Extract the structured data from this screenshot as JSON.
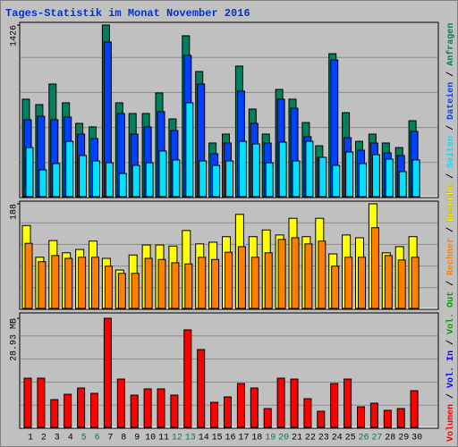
{
  "title": "Tages-Statistik im Monat November 2016",
  "legend_separator": "/",
  "chart_data": [
    {
      "type": "bar",
      "ylim": [
        0,
        1426
      ],
      "yticks": [
        1426
      ],
      "series": [
        {
          "name": "Anfragen",
          "color": "#00805c",
          "values": [
            810,
            765,
            936,
            780,
            609,
            580,
            1426,
            780,
            691,
            691,
            862,
            646,
            1337,
            1040,
            446,
            520,
            1085,
            728,
            520,
            891,
            810,
            616,
            423,
            1188,
            698,
            460,
            520,
            446,
            408,
            631
          ]
        },
        {
          "name": "Dateien",
          "color": "#0040ff",
          "values": [
            639,
            668,
            639,
            661,
            520,
            483,
            1285,
            691,
            520,
            580,
            706,
            550,
            1174,
            936,
            357,
            446,
            877,
            609,
            446,
            810,
            735,
            498,
            327,
            1136,
            490,
            386,
            446,
            364,
            342,
            542
          ]
        },
        {
          "name": "Seiten",
          "color": "#00e0ff",
          "values": [
            408,
            223,
            275,
            460,
            342,
            297,
            282,
            193,
            260,
            282,
            379,
            305,
            780,
            297,
            260,
            297,
            460,
            438,
            282,
            453,
            297,
            460,
            327,
            260,
            371,
            275,
            349,
            312,
            208,
            305
          ]
        }
      ]
    },
    {
      "type": "bar",
      "ylim": [
        0,
        188
      ],
      "yticks": [
        188
      ],
      "series": [
        {
          "name": "Besuche",
          "color": "#ffff00",
          "values": [
            149,
            92,
            122,
            100,
            106,
            121,
            90,
            69,
            96,
            114,
            114,
            112,
            140,
            116,
            119,
            129,
            169,
            129,
            141,
            132,
            162,
            129,
            162,
            98,
            132,
            127,
            188,
            100,
            111,
            129
          ]
        },
        {
          "name": "Rechner",
          "color": "#ff8000",
          "values": [
            117,
            84,
            95,
            90,
            92,
            92,
            76,
            63,
            63,
            90,
            88,
            82,
            80,
            92,
            88,
            101,
            111,
            92,
            100,
            124,
            127,
            116,
            121,
            76,
            92,
            92,
            145,
            95,
            87,
            92
          ]
        }
      ]
    },
    {
      "type": "bar",
      "ylim": [
        0,
        28.93
      ],
      "yticks": [
        {
          "value": 28.93,
          "label": "28.93 MB"
        }
      ],
      "categories": [
        "1",
        "2",
        "3",
        "4",
        "5",
        "6",
        "7",
        "8",
        "9",
        "10",
        "11",
        "12",
        "13",
        "14",
        "15",
        "16",
        "17",
        "18",
        "19",
        "20",
        "21",
        "22",
        "23",
        "24",
        "25",
        "26",
        "27",
        "28",
        "29",
        "30"
      ],
      "category_colors": [
        "#000000",
        "#000000",
        "#000000",
        "#000000",
        "#00805c",
        "#00805c",
        "#000000",
        "#000000",
        "#000000",
        "#000000",
        "#000000",
        "#00805c",
        "#00805c",
        "#000000",
        "#000000",
        "#000000",
        "#000000",
        "#000000",
        "#00805c",
        "#00805c",
        "#000000",
        "#000000",
        "#000000",
        "#000000",
        "#000000",
        "#00805c",
        "#00805c",
        "#000000",
        "#000000",
        "#000000"
      ],
      "series": [
        {
          "name": "Volumen",
          "color": "#ff0000",
          "values": [
            13.04,
            13.04,
            7.35,
            8.77,
            10.43,
            9.01,
            28.93,
            12.8,
            8.54,
            10.2,
            10.2,
            8.54,
            25.85,
            20.63,
            6.64,
            8.06,
            11.62,
            10.43,
            4.98,
            13.04,
            12.8,
            7.59,
            4.27,
            11.62,
            12.8,
            5.45,
            6.4,
            4.51,
            4.98,
            9.72
          ]
        }
      ],
      "extra_legend": [
        {
          "name": "Vol. In",
          "color": "#0000ff"
        },
        {
          "name": "Vol. Out",
          "color": "#00a000"
        }
      ]
    }
  ]
}
